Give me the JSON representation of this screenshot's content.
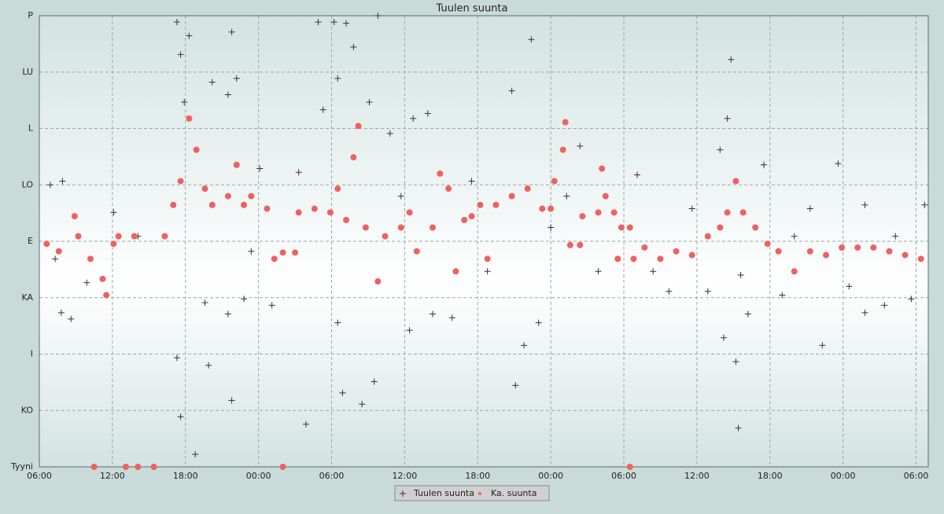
{
  "chart_data": {
    "type": "scatter",
    "title": "Tuulen suunta",
    "xlim": [
      0,
      73
    ],
    "ylim": [
      0,
      360
    ],
    "grid": true,
    "legend": "bottom",
    "xticks": [
      {
        "value": 0,
        "label": "06:00"
      },
      {
        "value": 6,
        "label": "12:00"
      },
      {
        "value": 12,
        "label": "18:00"
      },
      {
        "value": 18,
        "label": "00:00"
      },
      {
        "value": 24,
        "label": "06:00"
      },
      {
        "value": 30,
        "label": "12:00"
      },
      {
        "value": 36,
        "label": "18:00"
      },
      {
        "value": 42,
        "label": "00:00"
      },
      {
        "value": 48,
        "label": "06:00"
      },
      {
        "value": 54,
        "label": "12:00"
      },
      {
        "value": 60,
        "label": "18:00"
      },
      {
        "value": 66,
        "label": "00:00"
      },
      {
        "value": 72,
        "label": "06:00"
      }
    ],
    "yticks": [
      {
        "value": 0,
        "label": "Tyyni"
      },
      {
        "value": 45,
        "label": "KO"
      },
      {
        "value": 90,
        "label": "I"
      },
      {
        "value": 135,
        "label": "KA"
      },
      {
        "value": 180,
        "label": "E"
      },
      {
        "value": 225,
        "label": "LO"
      },
      {
        "value": 270,
        "label": "L"
      },
      {
        "value": 315,
        "label": "LU"
      },
      {
        "value": 360,
        "label": "P"
      }
    ],
    "series": [
      {
        "name": "Tuulen suunta",
        "color": "#333333",
        "marker": "plus",
        "x": [
          0.9,
          1.3,
          1.8,
          1.9,
          2.6,
          3.9,
          6.1,
          8.1,
          11.3,
          11.3,
          11.6,
          11.6,
          11.9,
          12.3,
          12.8,
          13.6,
          13.9,
          14.2,
          15.5,
          15.5,
          15.8,
          15.8,
          16.2,
          16.8,
          17.4,
          18.1,
          19.1,
          21.3,
          21.9,
          22.9,
          23.3,
          24.2,
          24.5,
          24.5,
          24.9,
          25.2,
          25.8,
          26.5,
          27.1,
          27.5,
          27.8,
          28.8,
          29.7,
          30.4,
          30.7,
          31.9,
          32.3,
          33.9,
          35.5,
          36.8,
          38.8,
          39.1,
          39.8,
          40.4,
          41.0,
          42.0,
          43.3,
          44.4,
          45.9,
          49.1,
          50.4,
          51.7,
          53.6,
          54.9,
          55.9,
          56.2,
          56.5,
          56.8,
          57.2,
          57.4,
          57.6,
          58.2,
          59.5,
          61.0,
          62.0,
          63.3,
          64.3,
          65.6,
          66.5,
          67.8,
          67.8,
          69.4,
          70.3,
          71.6,
          72.7
        ],
        "values": [
          225,
          166,
          123,
          228,
          118,
          147,
          203,
          184,
          355,
          87,
          329,
          40,
          291,
          344,
          10,
          131,
          81,
          307,
          297,
          122,
          347,
          53,
          310,
          134,
          172,
          238,
          129,
          235,
          34,
          355,
          285,
          355,
          310,
          115,
          59,
          354,
          335,
          50,
          291,
          68,
          360,
          266,
          216,
          109,
          278,
          282,
          122,
          119,
          228,
          156,
          300,
          65,
          97,
          341,
          115,
          191,
          216,
          256,
          156,
          233,
          156,
          140,
          206,
          140,
          253,
          103,
          278,
          325,
          84,
          31,
          153,
          122,
          241,
          137,
          184,
          206,
          97,
          242,
          144,
          209,
          123,
          129,
          184,
          134,
          209
        ]
      },
      {
        "name": "Ka. suunta",
        "color": "#f0605f",
        "marker": "circle",
        "x": [
          0.6,
          1.6,
          2.9,
          3.2,
          4.2,
          4.5,
          5.2,
          5.5,
          6.1,
          6.5,
          7.1,
          7.8,
          8.1,
          9.4,
          10.3,
          11.0,
          11.6,
          12.3,
          12.9,
          13.6,
          14.2,
          15.5,
          16.2,
          16.8,
          17.4,
          18.7,
          19.3,
          20.0,
          20.0,
          21.0,
          21.3,
          22.6,
          23.9,
          24.5,
          25.2,
          25.8,
          26.2,
          26.8,
          27.8,
          28.4,
          29.7,
          30.4,
          31.0,
          32.3,
          32.9,
          33.6,
          34.2,
          34.9,
          35.5,
          36.2,
          36.8,
          37.5,
          38.8,
          40.1,
          41.3,
          42.0,
          42.3,
          43.0,
          43.2,
          43.6,
          44.4,
          44.6,
          45.9,
          46.2,
          46.5,
          47.2,
          47.5,
          47.8,
          48.5,
          48.5,
          48.8,
          49.7,
          51.0,
          52.3,
          53.6,
          54.9,
          55.9,
          56.5,
          57.2,
          57.8,
          58.8,
          59.8,
          60.7,
          62.0,
          63.3,
          64.6,
          65.9,
          67.2,
          68.5,
          69.8,
          71.1,
          72.4
        ],
        "values": [
          178,
          172,
          200,
          184,
          166,
          0,
          150,
          137,
          178,
          184,
          0,
          184,
          0,
          0,
          184,
          209,
          228,
          278,
          253,
          222,
          209,
          216,
          241,
          209,
          216,
          206,
          166,
          171,
          0,
          171,
          203,
          206,
          203,
          222,
          197,
          247,
          272,
          191,
          148,
          184,
          191,
          203,
          172,
          191,
          234,
          222,
          156,
          197,
          200,
          209,
          166,
          209,
          216,
          222,
          206,
          206,
          228,
          253,
          275,
          177,
          177,
          200,
          203,
          238,
          216,
          203,
          166,
          191,
          191,
          0,
          166,
          175,
          166,
          172,
          169,
          184,
          191,
          203,
          228,
          203,
          191,
          178,
          172,
          156,
          172,
          169,
          175,
          175,
          175,
          172,
          169,
          166
        ]
      }
    ]
  }
}
